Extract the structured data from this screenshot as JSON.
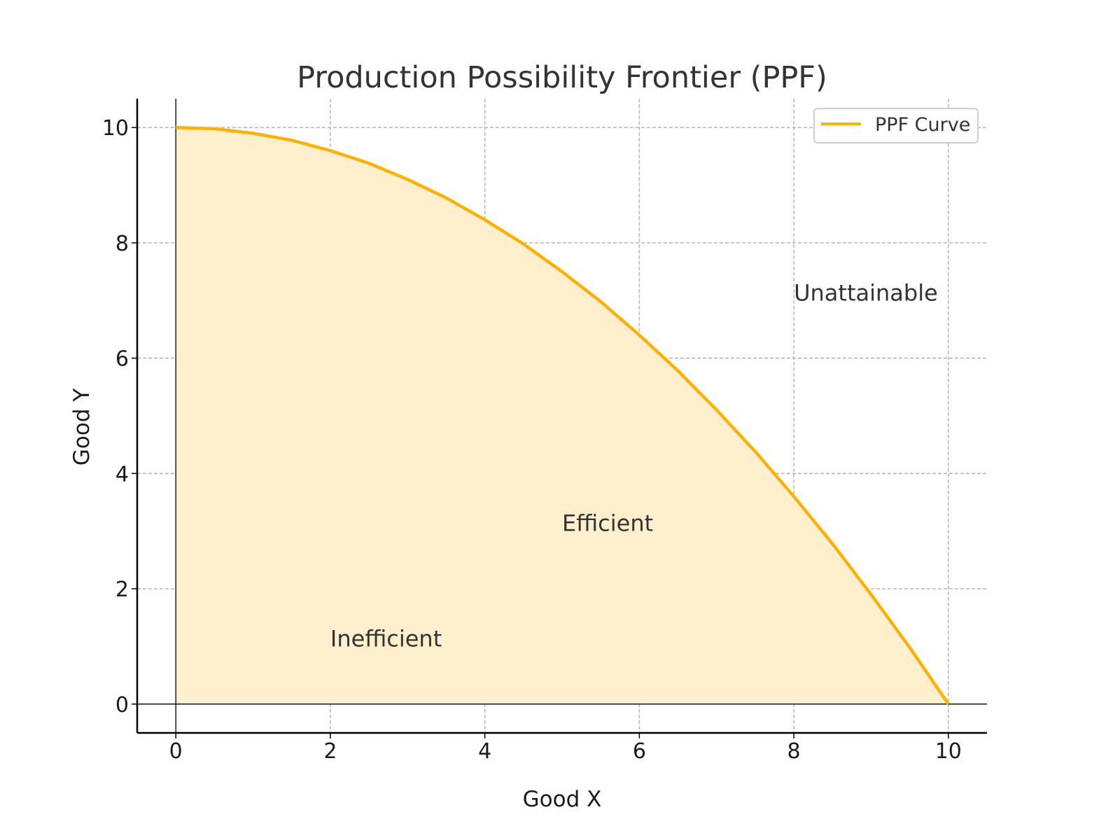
{
  "chart_data": {
    "type": "area",
    "title": "Production Possibility Frontier (PPF)",
    "xlabel": "Good X",
    "ylabel": "Good Y",
    "xlim": [
      -0.5,
      10.5
    ],
    "ylim": [
      -0.5,
      10.5
    ],
    "xticks": [
      0,
      2,
      4,
      6,
      8,
      10
    ],
    "yticks": [
      0,
      2,
      4,
      6,
      8,
      10
    ],
    "grid": true,
    "legend_position": "top-right",
    "series": [
      {
        "name": "PPF Curve",
        "color": "#FFB000",
        "fill_color": "#FFEFCC",
        "x": [
          0,
          0.5,
          1,
          1.5,
          2,
          2.5,
          3,
          3.5,
          4,
          4.5,
          5,
          5.5,
          6,
          6.5,
          7,
          7.5,
          8,
          8.5,
          9,
          9.5,
          10
        ],
        "y": [
          10,
          9.98,
          9.9,
          9.78,
          9.6,
          9.38,
          9.1,
          8.78,
          8.4,
          7.98,
          7.5,
          6.98,
          6.4,
          5.78,
          5.1,
          4.38,
          3.6,
          2.78,
          1.9,
          0.98,
          0
        ]
      }
    ],
    "annotations": [
      {
        "text": "Inefficient",
        "x": 2,
        "y": 1
      },
      {
        "text": "Efficient",
        "x": 5,
        "y": 3
      },
      {
        "text": "Unattainable",
        "x": 8,
        "y": 7
      }
    ]
  }
}
